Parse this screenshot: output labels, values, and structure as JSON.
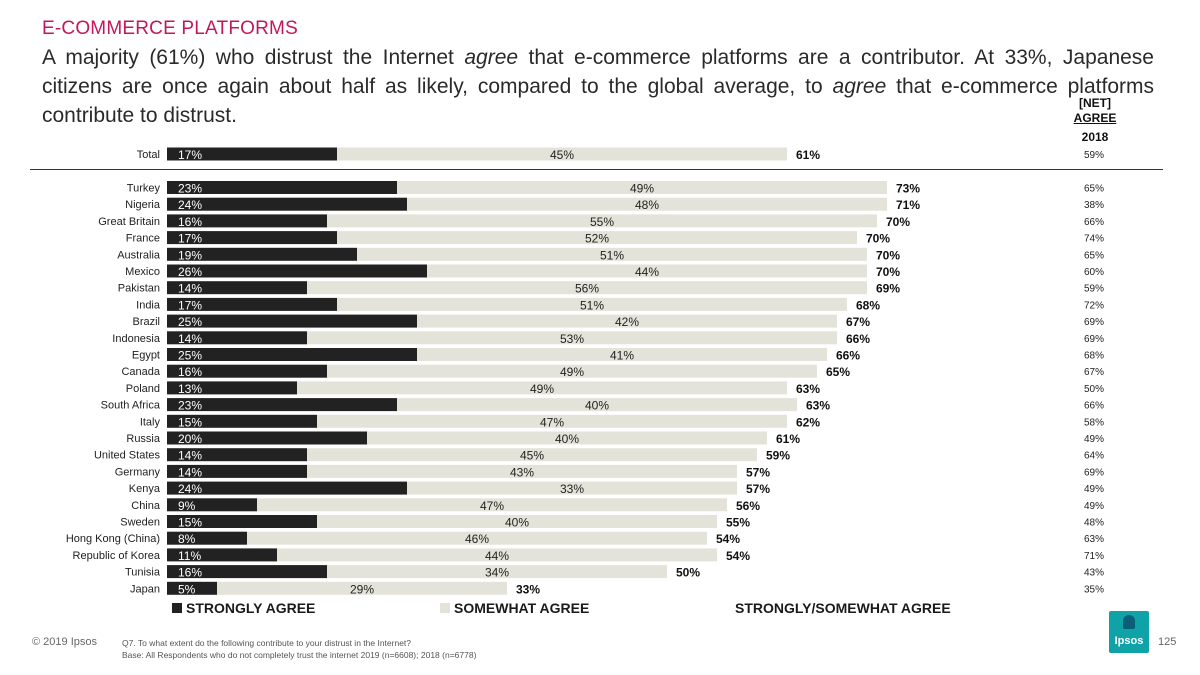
{
  "header": {
    "kicker": "E-COMMERCE PLATFORMS",
    "headline_parts": [
      "A majority (61%) who distrust the Internet ",
      "agree",
      " that e-commerce platforms are a contributor. At 33%, Japanese citizens are once again about half as likely, compared to the global average, to ",
      "agree",
      " that e-commerce platforms contribute to distrust."
    ]
  },
  "net_column": {
    "line1": "[NET]",
    "line2": "AGREE",
    "year": "2018"
  },
  "colors": {
    "strongly": "#222222",
    "somewhat": "#e4e3d9",
    "kicker": "#c2185b",
    "logo": "#0fa3a8"
  },
  "legend": {
    "strongly": "STRONGLY AGREE",
    "somewhat": "SOMEWHAT AGREE",
    "net": "STRONGLY/SOMEWHAT AGREE"
  },
  "chart_data": {
    "type": "bar",
    "stacked": true,
    "orientation": "horizontal",
    "unit": "%",
    "categories": [
      "Total",
      "Turkey",
      "Nigeria",
      "Great Britain",
      "France",
      "Australia",
      "Mexico",
      "Pakistan",
      "India",
      "Brazil",
      "Indonesia",
      "Egypt",
      "Canada",
      "Poland",
      "South Africa",
      "Italy",
      "Russia",
      "United States",
      "Germany",
      "Kenya",
      "China",
      "Sweden",
      "Hong Kong (China)",
      "Republic of Korea",
      "Tunisia",
      "Japan"
    ],
    "series": [
      {
        "name": "STRONGLY AGREE",
        "values": [
          17,
          23,
          24,
          16,
          17,
          19,
          26,
          14,
          17,
          25,
          14,
          25,
          16,
          13,
          23,
          15,
          20,
          14,
          14,
          24,
          9,
          15,
          8,
          11,
          16,
          5
        ]
      },
      {
        "name": "SOMEWHAT AGREE",
        "values": [
          45,
          49,
          48,
          55,
          52,
          51,
          44,
          56,
          51,
          42,
          53,
          41,
          49,
          49,
          40,
          47,
          40,
          45,
          43,
          33,
          47,
          40,
          46,
          44,
          34,
          29
        ]
      }
    ],
    "net": [
      61,
      73,
      71,
      70,
      70,
      70,
      70,
      69,
      68,
      67,
      66,
      66,
      65,
      63,
      63,
      62,
      61,
      59,
      57,
      57,
      56,
      55,
      54,
      54,
      50,
      33
    ],
    "net_2018": [
      59,
      65,
      38,
      66,
      74,
      65,
      60,
      59,
      72,
      69,
      69,
      68,
      67,
      50,
      66,
      58,
      49,
      64,
      69,
      49,
      49,
      48,
      63,
      71,
      43,
      35
    ]
  },
  "footer": {
    "copyright": "© 2019 Ipsos",
    "question": "Q7.  To what extent do the following contribute to your distrust in the Internet?",
    "base": "Base: All Respondents who do not completely trust the internet 2019 (n=6608); 2018 (n=6778)",
    "logo_text": "Ipsos",
    "page_number": "125"
  }
}
